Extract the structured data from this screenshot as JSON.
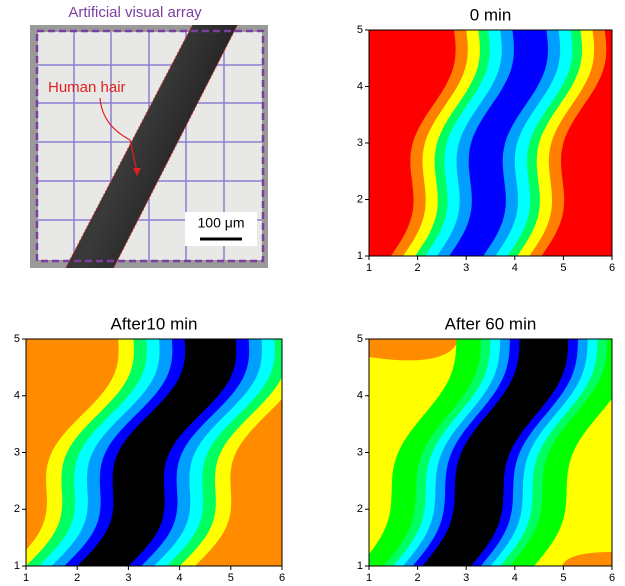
{
  "photo": {
    "title": "Artificial visual array",
    "annotation": "Human hair",
    "scale_bar": "100 μm"
  },
  "chart_data": [
    {
      "type": "contour",
      "title": "0 min",
      "xlim": [
        1,
        6
      ],
      "ylim": [
        1,
        5
      ],
      "xticks": [
        1,
        2,
        3,
        4,
        5,
        6
      ],
      "yticks": [
        1,
        2,
        3,
        4,
        5
      ]
    },
    {
      "type": "contour",
      "title": "After10 min",
      "xlim": [
        1,
        6
      ],
      "ylim": [
        1,
        5
      ],
      "xticks": [
        1,
        2,
        3,
        4,
        5,
        6
      ],
      "yticks": [
        1,
        2,
        3,
        4,
        5
      ]
    },
    {
      "type": "contour",
      "title": "After 60 min",
      "xlim": [
        1,
        6
      ],
      "ylim": [
        1,
        5
      ],
      "xticks": [
        1,
        2,
        3,
        4,
        5,
        6
      ],
      "yticks": [
        1,
        2,
        3,
        4,
        5
      ]
    }
  ]
}
